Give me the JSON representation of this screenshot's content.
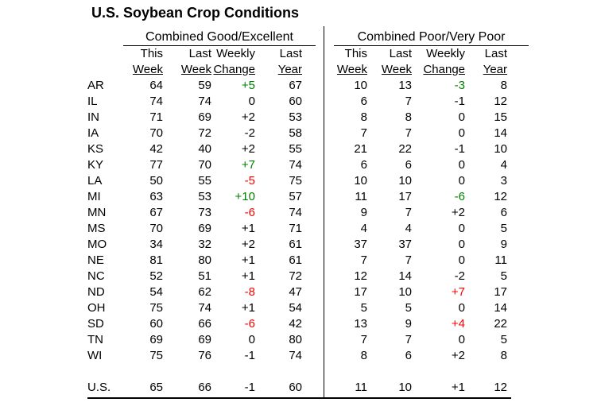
{
  "title": "U.S. Soybean Crop Conditions",
  "colors": {
    "positive_highlight": "#008000",
    "negative_highlight": "#ff0000",
    "text": "#000000",
    "rule": "#000000",
    "background": "#ffffff"
  },
  "chart_data": {
    "type": "table",
    "title": "U.S. Soybean Crop Conditions",
    "groups": [
      {
        "label": "Combined Good/Excellent"
      },
      {
        "label": "Combined Poor/Very Poor"
      }
    ],
    "column_header_line1": [
      "This",
      "Last",
      "Weekly",
      "Last"
    ],
    "column_header_line2": [
      "Week",
      "Week",
      "Change",
      "Year"
    ],
    "rows": [
      {
        "state": "AR",
        "good_excellent": {
          "this_week": "64",
          "last_week": "59",
          "weekly_change": "+5",
          "weekly_change_color": "green",
          "last_year": "67"
        },
        "poor_very_poor": {
          "this_week": "10",
          "last_week": "13",
          "weekly_change": "-3",
          "weekly_change_color": "green",
          "last_year": "8"
        }
      },
      {
        "state": "IL",
        "good_excellent": {
          "this_week": "74",
          "last_week": "74",
          "weekly_change": "0",
          "last_year": "60"
        },
        "poor_very_poor": {
          "this_week": "6",
          "last_week": "7",
          "weekly_change": "-1",
          "last_year": "12"
        }
      },
      {
        "state": "IN",
        "good_excellent": {
          "this_week": "71",
          "last_week": "69",
          "weekly_change": "+2",
          "last_year": "53"
        },
        "poor_very_poor": {
          "this_week": "8",
          "last_week": "8",
          "weekly_change": "0",
          "last_year": "15"
        }
      },
      {
        "state": "IA",
        "good_excellent": {
          "this_week": "70",
          "last_week": "72",
          "weekly_change": "-2",
          "last_year": "58"
        },
        "poor_very_poor": {
          "this_week": "7",
          "last_week": "7",
          "weekly_change": "0",
          "last_year": "14"
        }
      },
      {
        "state": "KS",
        "good_excellent": {
          "this_week": "42",
          "last_week": "40",
          "weekly_change": "+2",
          "last_year": "55"
        },
        "poor_very_poor": {
          "this_week": "21",
          "last_week": "22",
          "weekly_change": "-1",
          "last_year": "10"
        }
      },
      {
        "state": "KY",
        "good_excellent": {
          "this_week": "77",
          "last_week": "70",
          "weekly_change": "+7",
          "weekly_change_color": "green",
          "last_year": "74"
        },
        "poor_very_poor": {
          "this_week": "6",
          "last_week": "6",
          "weekly_change": "0",
          "last_year": "4"
        }
      },
      {
        "state": "LA",
        "good_excellent": {
          "this_week": "50",
          "last_week": "55",
          "weekly_change": "-5",
          "weekly_change_color": "red",
          "last_year": "75"
        },
        "poor_very_poor": {
          "this_week": "10",
          "last_week": "10",
          "weekly_change": "0",
          "last_year": "3"
        }
      },
      {
        "state": "MI",
        "good_excellent": {
          "this_week": "63",
          "last_week": "53",
          "weekly_change": "+10",
          "weekly_change_color": "green",
          "last_year": "57"
        },
        "poor_very_poor": {
          "this_week": "11",
          "last_week": "17",
          "weekly_change": "-6",
          "weekly_change_color": "green",
          "last_year": "12"
        }
      },
      {
        "state": "MN",
        "good_excellent": {
          "this_week": "67",
          "last_week": "73",
          "weekly_change": "-6",
          "weekly_change_color": "red",
          "last_year": "74"
        },
        "poor_very_poor": {
          "this_week": "9",
          "last_week": "7",
          "weekly_change": "+2",
          "last_year": "6"
        }
      },
      {
        "state": "MS",
        "good_excellent": {
          "this_week": "70",
          "last_week": "69",
          "weekly_change": "+1",
          "last_year": "71"
        },
        "poor_very_poor": {
          "this_week": "4",
          "last_week": "4",
          "weekly_change": "0",
          "last_year": "5"
        }
      },
      {
        "state": "MO",
        "good_excellent": {
          "this_week": "34",
          "last_week": "32",
          "weekly_change": "+2",
          "last_year": "61"
        },
        "poor_very_poor": {
          "this_week": "37",
          "last_week": "37",
          "weekly_change": "0",
          "last_year": "9"
        }
      },
      {
        "state": "NE",
        "good_excellent": {
          "this_week": "81",
          "last_week": "80",
          "weekly_change": "+1",
          "last_year": "61"
        },
        "poor_very_poor": {
          "this_week": "7",
          "last_week": "7",
          "weekly_change": "0",
          "last_year": "11"
        }
      },
      {
        "state": "NC",
        "good_excellent": {
          "this_week": "52",
          "last_week": "51",
          "weekly_change": "+1",
          "last_year": "72"
        },
        "poor_very_poor": {
          "this_week": "12",
          "last_week": "14",
          "weekly_change": "-2",
          "last_year": "5"
        }
      },
      {
        "state": "ND",
        "good_excellent": {
          "this_week": "54",
          "last_week": "62",
          "weekly_change": "-8",
          "weekly_change_color": "red",
          "last_year": "47"
        },
        "poor_very_poor": {
          "this_week": "17",
          "last_week": "10",
          "weekly_change": "+7",
          "weekly_change_color": "red",
          "last_year": "17"
        }
      },
      {
        "state": "OH",
        "good_excellent": {
          "this_week": "75",
          "last_week": "74",
          "weekly_change": "+1",
          "last_year": "54"
        },
        "poor_very_poor": {
          "this_week": "5",
          "last_week": "5",
          "weekly_change": "0",
          "last_year": "14"
        }
      },
      {
        "state": "SD",
        "good_excellent": {
          "this_week": "60",
          "last_week": "66",
          "weekly_change": "-6",
          "weekly_change_color": "red",
          "last_year": "42"
        },
        "poor_very_poor": {
          "this_week": "13",
          "last_week": "9",
          "weekly_change": "+4",
          "weekly_change_color": "red",
          "last_year": "22"
        }
      },
      {
        "state": "TN",
        "good_excellent": {
          "this_week": "69",
          "last_week": "69",
          "weekly_change": "0",
          "last_year": "80"
        },
        "poor_very_poor": {
          "this_week": "7",
          "last_week": "7",
          "weekly_change": "0",
          "last_year": "5"
        }
      },
      {
        "state": "WI",
        "good_excellent": {
          "this_week": "75",
          "last_week": "76",
          "weekly_change": "-1",
          "last_year": "74"
        },
        "poor_very_poor": {
          "this_week": "8",
          "last_week": "6",
          "weekly_change": "+2",
          "last_year": "8"
        }
      }
    ],
    "total_row": {
      "state": "U.S.",
      "good_excellent": {
        "this_week": "65",
        "last_week": "66",
        "weekly_change": "-1",
        "last_year": "60"
      },
      "poor_very_poor": {
        "this_week": "11",
        "last_week": "10",
        "weekly_change": "+1",
        "last_year": "12"
      }
    }
  }
}
